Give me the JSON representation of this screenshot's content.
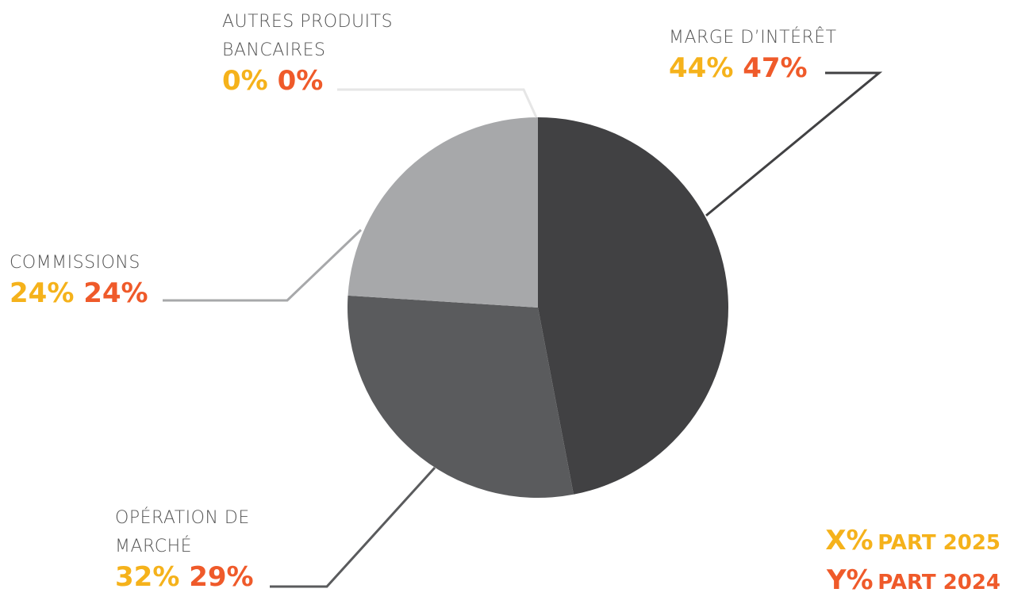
{
  "chart_data": {
    "type": "pie",
    "categories": [
      "MARGE D’INTÉRÊT",
      "OPÉRATION DE MARCHÉ",
      "COMMISSIONS",
      "AUTRES PRODUITS BANCAIRES"
    ],
    "colors": [
      "#414143",
      "#5a5b5d",
      "#a7a8aa",
      "#e6e6e6"
    ],
    "series": [
      {
        "name": "PART 2025",
        "symbol": "X%",
        "color": "#f5b21b",
        "values": [
          44,
          32,
          24,
          0
        ],
        "value_labels": [
          "44%",
          "32%",
          "24%",
          "0%"
        ]
      },
      {
        "name": "PART 2024",
        "symbol": "Y%",
        "color": "#ef5a2a",
        "values": [
          47,
          29,
          24,
          0
        ],
        "value_labels": [
          "47%",
          "29%",
          "24%",
          "0%"
        ]
      }
    ]
  }
}
